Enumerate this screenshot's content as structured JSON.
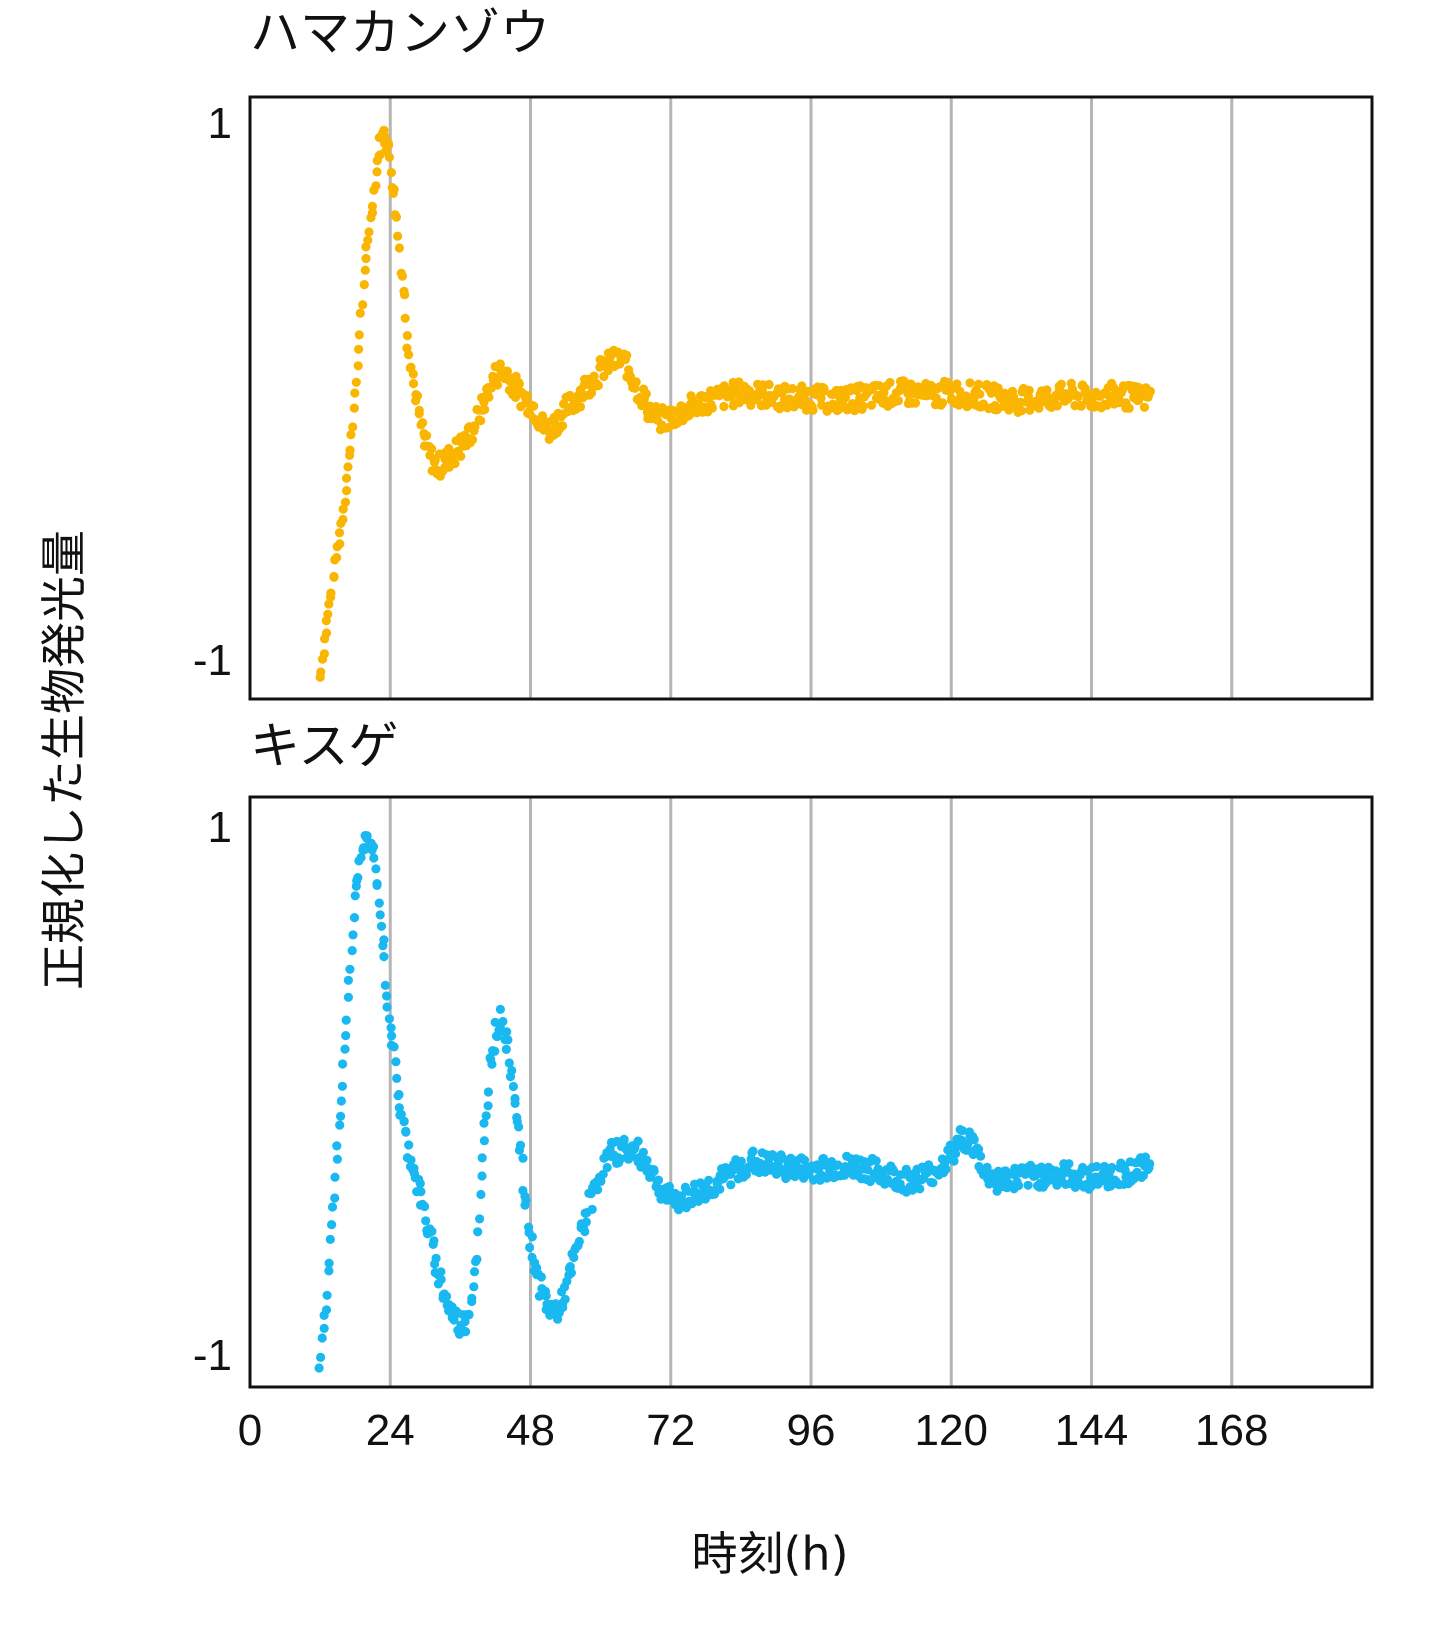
{
  "chart_data": {
    "type": "scatter",
    "ylabel": "正規化した生物発光量",
    "xlabel": "時刻(h)",
    "xlim": [
      0,
      192
    ],
    "ylim": [
      -1.1,
      1.1
    ],
    "xticks": [
      "0",
      "24",
      "48",
      "72",
      "96",
      "120",
      "144",
      "168"
    ],
    "xtick_values": [
      0,
      24,
      48,
      72,
      96,
      120,
      144,
      168
    ],
    "grid_x": [
      24,
      48,
      72,
      96,
      120,
      144,
      168
    ],
    "panels": [
      {
        "title": "ハマカンゾウ",
        "color": "#f9b500",
        "yticks": [
          "1",
          "-1"
        ],
        "ytick_values": [
          1,
          -1
        ],
        "x": [
          12,
          13,
          14,
          15,
          16,
          17,
          18,
          19,
          20,
          21,
          22,
          23,
          24,
          25,
          26,
          27,
          28,
          29,
          30,
          31,
          32,
          33,
          34,
          35,
          36,
          37,
          38,
          39,
          40,
          41,
          42,
          43,
          44,
          45,
          46,
          47,
          48,
          49,
          50,
          51,
          52,
          53,
          54,
          55,
          56,
          57,
          58,
          59,
          60,
          61,
          62,
          63,
          64,
          65,
          66,
          67,
          68,
          69,
          70,
          72,
          74,
          76,
          78,
          80,
          84,
          88,
          92,
          96,
          100,
          104,
          108,
          112,
          116,
          120,
          124,
          128,
          132,
          136,
          140,
          144,
          148,
          152,
          154
        ],
        "y": [
          -1.02,
          -0.85,
          -0.7,
          -0.55,
          -0.4,
          -0.22,
          0.0,
          0.3,
          0.55,
          0.72,
          0.9,
          0.98,
          0.88,
          0.7,
          0.45,
          0.22,
          0.05,
          -0.08,
          -0.17,
          -0.22,
          -0.25,
          -0.24,
          -0.22,
          -0.2,
          -0.18,
          -0.15,
          -0.12,
          -0.07,
          -0.02,
          0.04,
          0.08,
          0.1,
          0.09,
          0.05,
          0.02,
          0.0,
          -0.02,
          -0.05,
          -0.1,
          -0.12,
          -0.1,
          -0.07,
          -0.04,
          -0.02,
          0.0,
          0.03,
          0.05,
          0.07,
          0.1,
          0.12,
          0.13,
          0.14,
          0.13,
          0.1,
          0.05,
          0.01,
          -0.03,
          -0.06,
          -0.08,
          -0.07,
          -0.05,
          -0.03,
          -0.01,
          0.0,
          0.02,
          0.01,
          0.0,
          0.0,
          -0.01,
          0.0,
          0.01,
          0.02,
          0.01,
          0.02,
          0.01,
          0.0,
          -0.01,
          0.0,
          0.01,
          0.0,
          0.01,
          0.0,
          0.0
        ]
      },
      {
        "title": "キスゲ",
        "color": "#1ab8f0",
        "yticks": [
          "1",
          "-1"
        ],
        "ytick_values": [
          1,
          -1
        ],
        "x": [
          12,
          13,
          14,
          15,
          16,
          17,
          18,
          19,
          20,
          21,
          22,
          23,
          24,
          25,
          26,
          27,
          28,
          29,
          30,
          31,
          32,
          33,
          34,
          35,
          36,
          37,
          38,
          39,
          40,
          41,
          42,
          43,
          44,
          45,
          46,
          47,
          48,
          49,
          50,
          51,
          52,
          53,
          54,
          55,
          56,
          57,
          58,
          59,
          60,
          61,
          62,
          63,
          64,
          65,
          66,
          67,
          68,
          69,
          70,
          71,
          72,
          74,
          76,
          78,
          80,
          82,
          84,
          86,
          88,
          92,
          96,
          100,
          104,
          108,
          112,
          116,
          118,
          120,
          121,
          122,
          123,
          124,
          125,
          126,
          128,
          132,
          136,
          140,
          144,
          148,
          152,
          154
        ],
        "y": [
          -1.02,
          -0.8,
          -0.5,
          -0.2,
          0.1,
          0.4,
          0.72,
          0.88,
          0.95,
          0.9,
          0.72,
          0.48,
          0.25,
          0.05,
          -0.1,
          -0.2,
          -0.28,
          -0.37,
          -0.47,
          -0.56,
          -0.65,
          -0.73,
          -0.8,
          -0.84,
          -0.87,
          -0.85,
          -0.75,
          -0.55,
          -0.2,
          0.1,
          0.22,
          0.28,
          0.18,
          0.05,
          -0.15,
          -0.38,
          -0.55,
          -0.67,
          -0.75,
          -0.8,
          -0.82,
          -0.8,
          -0.74,
          -0.66,
          -0.58,
          -0.5,
          -0.42,
          -0.36,
          -0.3,
          -0.26,
          -0.23,
          -0.22,
          -0.21,
          -0.22,
          -0.22,
          -0.24,
          -0.27,
          -0.31,
          -0.35,
          -0.38,
          -0.4,
          -0.4,
          -0.38,
          -0.36,
          -0.34,
          -0.31,
          -0.28,
          -0.26,
          -0.27,
          -0.28,
          -0.29,
          -0.28,
          -0.28,
          -0.3,
          -0.33,
          -0.31,
          -0.28,
          -0.24,
          -0.2,
          -0.17,
          -0.18,
          -0.21,
          -0.26,
          -0.31,
          -0.33,
          -0.32,
          -0.31,
          -0.31,
          -0.32,
          -0.31,
          -0.29,
          -0.28
        ]
      }
    ]
  }
}
